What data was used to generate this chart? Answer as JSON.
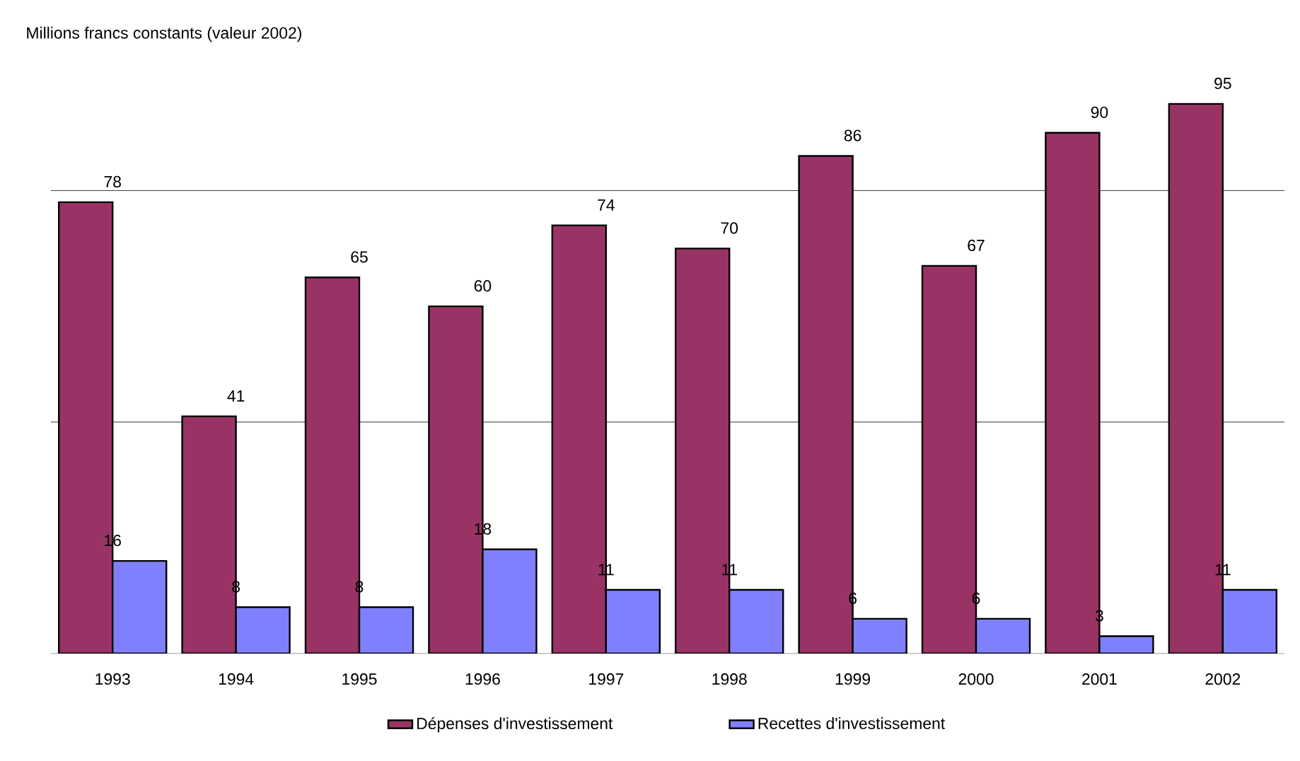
{
  "chart_data": {
    "type": "bar",
    "ylabel": "Millions francs constants (valeur 2002)",
    "categories": [
      "1993",
      "1994",
      "1995",
      "1996",
      "1997",
      "1998",
      "1999",
      "2000",
      "2001",
      "2002"
    ],
    "series": [
      {
        "name": "Dépenses d'investissement",
        "color": "#993366",
        "values": [
          78,
          41,
          65,
          60,
          74,
          70,
          86,
          67,
          90,
          95
        ]
      },
      {
        "name": "Recettes d'investissement",
        "color": "#8080ff",
        "values": [
          16,
          8,
          8,
          18,
          11,
          11,
          6,
          6,
          3,
          11
        ]
      }
    ],
    "ref_lines": [
      {
        "axis": "y",
        "value": 40,
        "color": "#000000"
      },
      {
        "axis": "y",
        "value": 80,
        "color": "#000000"
      }
    ],
    "data_labels": true,
    "legend": "bottom"
  }
}
